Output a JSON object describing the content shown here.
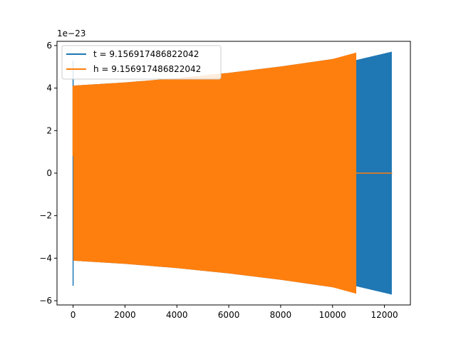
{
  "chart_data": {
    "type": "line",
    "title": "",
    "xlabel": "",
    "ylabel": "",
    "xlim": [
      -620,
      13000
    ],
    "ylim": [
      -6.2,
      6.2
    ],
    "x_ticks": [
      0,
      2000,
      4000,
      6000,
      8000,
      10000,
      12000
    ],
    "x_tick_labels": [
      "0",
      "2000",
      "4000",
      "6000",
      "8000",
      "10000",
      "12000"
    ],
    "y_ticks": [
      -6,
      -4,
      -2,
      0,
      2,
      4,
      6
    ],
    "y_tick_labels": [
      "−6",
      "−4",
      "−2",
      "0",
      "2",
      "4",
      "6"
    ],
    "y_offset_label": "1e−23",
    "grid": false,
    "legend": "top-left",
    "series": [
      {
        "name": "t = 9.156917486822042",
        "color": "#1f77b4",
        "description_points": {
          "spike_x": 0,
          "spike_max": 5.3,
          "spike_min": -5.3,
          "envelope_x": [
            0,
            2000,
            4000,
            6000,
            8000,
            10000,
            10900,
            12300
          ],
          "envelope_amp": [
            4.1,
            4.25,
            4.45,
            4.7,
            5.0,
            5.35,
            5.3,
            5.7
          ]
        }
      },
      {
        "name": "h = 9.156917486822042",
        "color": "#ff7f0e",
        "description_points": {
          "envelope_x": [
            0,
            2000,
            4000,
            6000,
            8000,
            10000,
            10900
          ],
          "envelope_amp": [
            4.1,
            4.25,
            4.45,
            4.7,
            5.0,
            5.35,
            5.65
          ],
          "flat_from": 10900,
          "flat_to": 12300,
          "flat_value": 0
        }
      }
    ]
  }
}
